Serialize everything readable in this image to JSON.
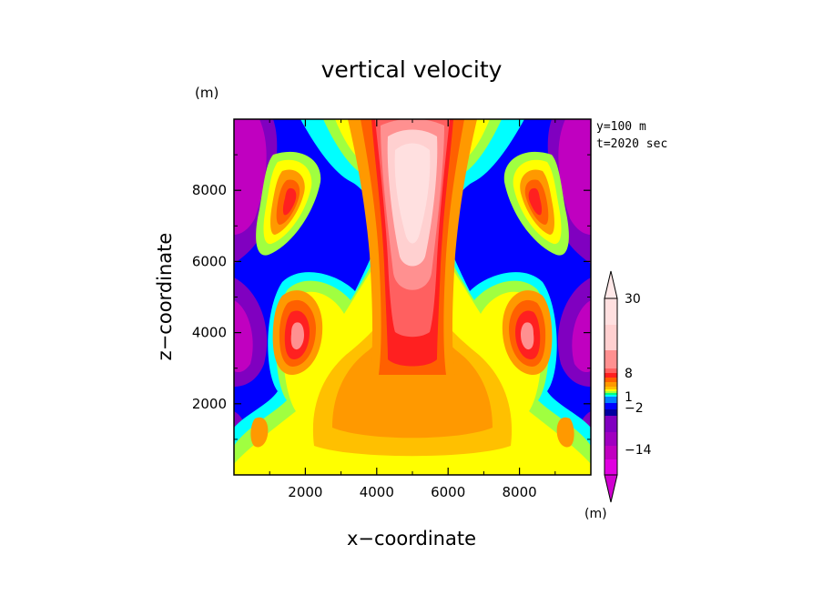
{
  "chart_data": {
    "type": "heatmap",
    "title": "vertical velocity",
    "xlabel": "x−coordinate",
    "ylabel": "z−coordinate",
    "x_unit": "(m)",
    "y_unit": "(m)",
    "annotation": [
      "y=100 m",
      "t=2020 sec"
    ],
    "xlim": [
      0,
      10000
    ],
    "ylim": [
      0,
      10000
    ],
    "x_ticks": [
      2000,
      4000,
      6000,
      8000
    ],
    "x_tick_labels": [
      "2000",
      "4000",
      "6000",
      "8000"
    ],
    "y_ticks": [
      2000,
      4000,
      6000,
      8000
    ],
    "y_tick_labels": [
      "2000",
      "4000",
      "6000",
      "8000"
    ],
    "colorbar": {
      "unit": "(m)",
      "labeled_levels": [
        {
          "value": 30,
          "label": "30"
        },
        {
          "value": 8,
          "label": "8"
        },
        {
          "value": 1,
          "label": "1"
        },
        {
          "value": -2,
          "label": "−2"
        },
        {
          "value": -14,
          "label": "−14"
        }
      ],
      "colors_top_to_bottom": [
        "#ffe0e0",
        "#ffd0d0",
        "#ff9090",
        "#ff6060",
        "#ff2020",
        "#ff6000",
        "#ff9900",
        "#ffc000",
        "#ffff00",
        "#a0ff40",
        "#00ff80",
        "#00ffff",
        "#0080ff",
        "#0000ff",
        "#0000a0",
        "#8000c0",
        "#a000c0",
        "#c000c0",
        "#e000e0"
      ]
    }
  }
}
